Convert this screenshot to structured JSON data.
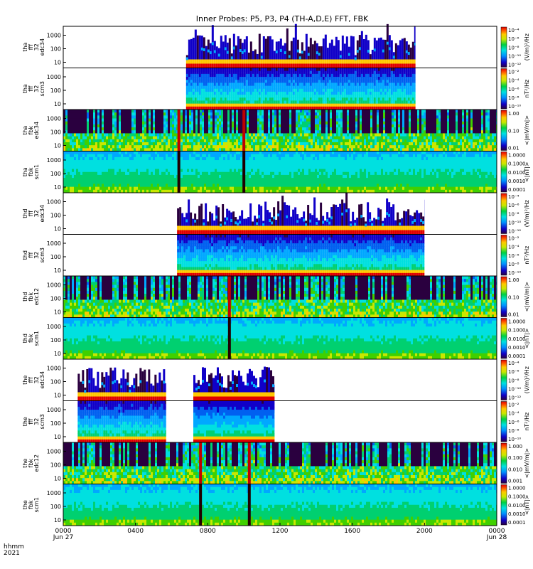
{
  "title": "Inner Probes: P5, P3, P4 (TH-A,D,E) FFT, FBK",
  "footer": {
    "hhmm": "hhmm",
    "year": "2021"
  },
  "chart_data": {
    "type": "heatmap",
    "title": "Inner Probes: P5, P3, P4 (TH-A,D,E) FFT, FBK",
    "x_ticks": [
      {
        "value": 0,
        "label": "0000",
        "sub": "Jun 27"
      },
      {
        "value": 4,
        "label": "0400"
      },
      {
        "value": 8,
        "label": "0800"
      },
      {
        "value": 12,
        "label": "1200"
      },
      {
        "value": 16,
        "label": "1600"
      },
      {
        "value": 20,
        "label": "2000"
      },
      {
        "value": 24,
        "label": "0000",
        "sub": "Jun 28"
      }
    ],
    "xlim": [
      0,
      24
    ],
    "y_scale": "log",
    "y_ticks": [
      "10",
      "100",
      "1000"
    ],
    "panels": [
      {
        "id": "tha-fff32-edc34",
        "labels": [
          "tha",
          "fff",
          "32",
          "edc34"
        ],
        "kind": "ffe",
        "coverage": [
          [
            6.8,
            19.5
          ]
        ],
        "cbar_unit": "(V/m)²/Hz",
        "cbar_ticks": [
          "10⁻⁴",
          "10⁻⁶",
          "10⁻⁸",
          "10⁻¹⁰",
          "10⁻¹²"
        ]
      },
      {
        "id": "tha-fff32-scm3",
        "labels": [
          "tha",
          "fff",
          "32",
          "scm3"
        ],
        "kind": "ffs",
        "coverage": [
          [
            6.8,
            19.5
          ]
        ],
        "cbar_unit": "nT²/Hz",
        "cbar_ticks": [
          "10⁻²",
          "10⁻⁴",
          "10⁻⁶",
          "10⁻⁸",
          "10⁻¹⁰"
        ]
      },
      {
        "id": "tha-fbk-edc34",
        "labels": [
          "tha",
          "fbk",
          "edc34"
        ],
        "kind": "fbe",
        "coverage": [
          [
            0,
            24
          ]
        ],
        "cbar_unit": "<|mV/m|>",
        "cbar_ticks": [
          "1.00",
          "0.10",
          "0.01"
        ],
        "spikes": [
          6.4,
          10.0
        ]
      },
      {
        "id": "tha-fbk-scm1",
        "labels": [
          "tha",
          "fbk",
          "scm1"
        ],
        "kind": "fbs",
        "coverage": [
          [
            0,
            24
          ]
        ],
        "cbar_unit": "<|nT|>",
        "cbar_ticks": [
          "1.0000",
          "0.1000",
          "0.0100",
          "0.0010",
          "0.0001"
        ],
        "spikes": [
          6.4,
          10.0
        ]
      },
      {
        "id": "thd-fff32-edc34",
        "labels": [
          "thd",
          "fff",
          "32",
          "edc34"
        ],
        "kind": "ffe",
        "coverage": [
          [
            6.3,
            20.0
          ]
        ],
        "cbar_unit": "(V/m)²/Hz",
        "cbar_ticks": [
          "10⁻⁴",
          "10⁻⁶",
          "10⁻⁸",
          "10⁻¹⁰",
          "10⁻¹²"
        ]
      },
      {
        "id": "thd-fff32-scm3",
        "labels": [
          "thd",
          "fff",
          "32",
          "scm3"
        ],
        "kind": "ffs",
        "coverage": [
          [
            6.3,
            20.0
          ]
        ],
        "cbar_unit": "nT²/Hz",
        "cbar_ticks": [
          "10⁻²",
          "10⁻⁴",
          "10⁻⁶",
          "10⁻⁸",
          "10⁻¹⁰"
        ]
      },
      {
        "id": "thd-fbk-edc12",
        "labels": [
          "thd",
          "fbk",
          "edc12"
        ],
        "kind": "fbe",
        "coverage": [
          [
            0,
            24
          ]
        ],
        "cbar_unit": "<|mV/m|>",
        "cbar_ticks": [
          "1.00",
          "0.10",
          "0.01"
        ],
        "spikes": [
          9.2
        ]
      },
      {
        "id": "thd-fbk-scm1",
        "labels": [
          "thd",
          "fbk",
          "scm1"
        ],
        "kind": "fbs",
        "coverage": [
          [
            0,
            24
          ]
        ],
        "cbar_unit": "<|nT|>",
        "cbar_ticks": [
          "1.0000",
          "0.1000",
          "0.0100",
          "0.0010",
          "0.0001"
        ],
        "spikes": [
          9.2
        ]
      },
      {
        "id": "the-fff32-edc34",
        "labels": [
          "the",
          "fff",
          "32",
          "edc34"
        ],
        "kind": "ffe",
        "coverage": [
          [
            0.8,
            5.7
          ],
          [
            7.2,
            11.7
          ]
        ],
        "cbar_unit": "(V/m)²/Hz",
        "cbar_ticks": [
          "10⁻⁴",
          "10⁻⁶",
          "10⁻⁸",
          "10⁻¹⁰",
          "10⁻¹²"
        ]
      },
      {
        "id": "the-fff32-scm3",
        "labels": [
          "the",
          "fff",
          "32",
          "scm3"
        ],
        "kind": "ffs",
        "coverage": [
          [
            0.8,
            5.7
          ],
          [
            7.2,
            11.7
          ]
        ],
        "cbar_unit": "nT²/Hz",
        "cbar_ticks": [
          "10⁻²",
          "10⁻⁴",
          "10⁻⁶",
          "10⁻⁸",
          "10⁻¹⁰"
        ]
      },
      {
        "id": "the-fbk-edc12",
        "labels": [
          "the",
          "fbk",
          "edc12"
        ],
        "kind": "fbe",
        "coverage": [
          [
            0,
            24
          ]
        ],
        "cbar_unit": "<|mV/m|>",
        "cbar_ticks": [
          "1.000",
          "0.100",
          "0.010",
          "0.001"
        ],
        "spikes": [
          7.6,
          10.3
        ]
      },
      {
        "id": "the-fbk-scm1",
        "labels": [
          "the",
          "fbk",
          "scm1"
        ],
        "kind": "fbs",
        "coverage": [
          [
            0,
            24
          ]
        ],
        "cbar_unit": "<|nT|>",
        "cbar_ticks": [
          "1.0000",
          "0.1000",
          "0.0100",
          "0.0010",
          "0.0001"
        ],
        "spikes": [
          7.6,
          10.3
        ]
      }
    ]
  }
}
